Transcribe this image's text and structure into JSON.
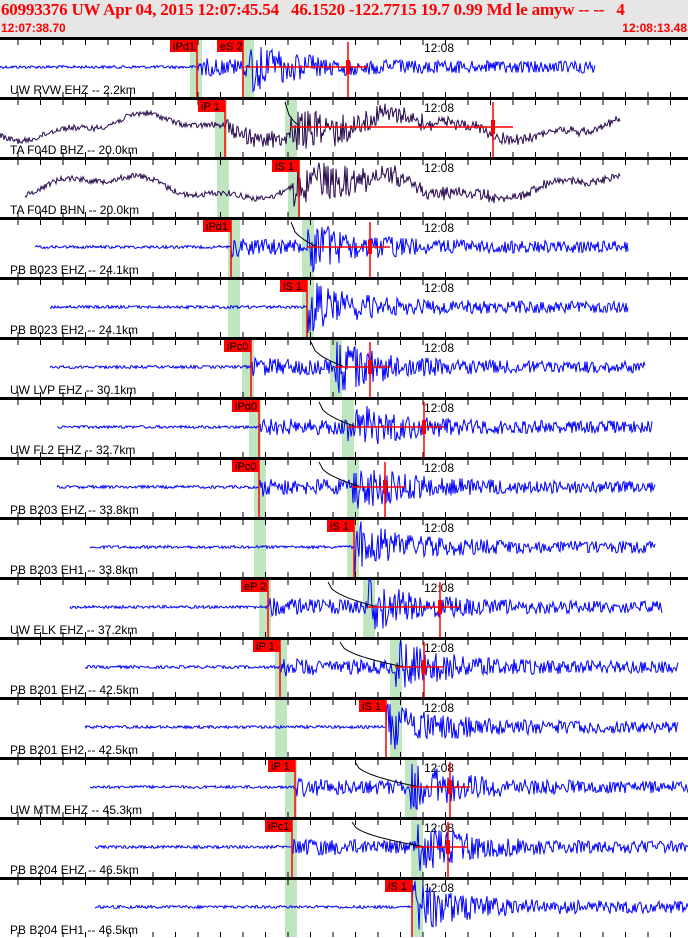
{
  "header": {
    "title": "60993376 UW Apr 04, 2015 12:07:45.54   46.1520 -122.7715 19.7 0.99 Md le amyw -- --   4",
    "start_time": "12:07:38.70",
    "end_time": "12:08:13.48"
  },
  "time_marker": "12:08",
  "colors": {
    "trace": "#0000ff",
    "broadband_trace": "#2a0a50",
    "pick": "#ff0000",
    "pick_window": "#bfe6c0",
    "header_bg": "#e6e6e6"
  },
  "channels": [
    {
      "label": "UW RVW EHZ -- 2.2km",
      "picks": [
        "iPd1",
        "eS 2"
      ]
    },
    {
      "label": "TA F04D BHZ -- 20.0km",
      "picks": [
        "iP 1"
      ]
    },
    {
      "label": "TA F04D BHN -- 20.0km",
      "picks": [
        "iS 1"
      ]
    },
    {
      "label": "PB B023 EHZ -- 24.1km",
      "picks": [
        "iPd1"
      ]
    },
    {
      "label": "PB B023 EH2 -- 24.1km",
      "picks": [
        "iS 1"
      ]
    },
    {
      "label": "UW LVP EHZ -- 30.1km",
      "picks": [
        "iPc0"
      ]
    },
    {
      "label": "UW FL2 EHZ -- 32.7km",
      "picks": [
        "iPd0"
      ]
    },
    {
      "label": "PB B203 EHZ -- 33.8km",
      "picks": [
        "iPc0"
      ]
    },
    {
      "label": "PB B203 EH1 -- 33.8km",
      "picks": [
        "iS 1"
      ]
    },
    {
      "label": "UW ELK EHZ -- 37.2km",
      "picks": [
        "eP 2"
      ]
    },
    {
      "label": "PB B201 EHZ -- 42.5km",
      "picks": [
        "iP 1"
      ]
    },
    {
      "label": "PB B201 EH2 -- 42.5km",
      "picks": [
        "iS 1"
      ]
    },
    {
      "label": "UW MTM EHZ -- 45.3km",
      "picks": [
        "iP 1"
      ]
    },
    {
      "label": "PB B204 EHZ -- 46.5km",
      "picks": [
        "iPc1"
      ]
    },
    {
      "label": "PB B204 EH1 -- 46.5km",
      "picks": [
        "iS 1"
      ]
    }
  ]
}
